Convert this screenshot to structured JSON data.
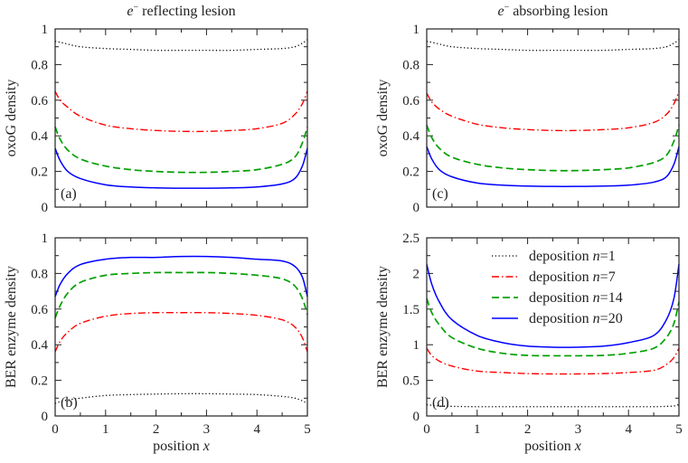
{
  "chart_data": [
    {
      "type": "line",
      "panel_label": "(a)",
      "title": {
        "e": "e",
        "sup": "−",
        "text": " reflecting lesion"
      },
      "xlabel": "",
      "ylabel": "oxoG density",
      "xlim": [
        0,
        5
      ],
      "ylim": [
        0,
        1
      ],
      "xticks": [
        0,
        1,
        2,
        3,
        4,
        5
      ],
      "yticks": [
        0,
        0.2,
        0.4,
        0.6,
        0.8,
        1
      ],
      "xtick_labels_shown": false,
      "x": [
        0,
        0.1,
        0.25,
        0.5,
        1,
        1.5,
        2,
        2.5,
        3,
        3.5,
        4,
        4.5,
        4.75,
        4.9,
        5
      ],
      "series": [
        {
          "key": "n1",
          "values": [
            0.93,
            0.925,
            0.915,
            0.9,
            0.89,
            0.885,
            0.88,
            0.88,
            0.88,
            0.88,
            0.885,
            0.89,
            0.9,
            0.92,
            0.94
          ]
        },
        {
          "key": "n7",
          "values": [
            0.65,
            0.6,
            0.56,
            0.51,
            0.46,
            0.44,
            0.43,
            0.425,
            0.425,
            0.43,
            0.44,
            0.47,
            0.52,
            0.58,
            0.65
          ]
        },
        {
          "key": "n14",
          "values": [
            0.45,
            0.38,
            0.32,
            0.27,
            0.23,
            0.21,
            0.2,
            0.195,
            0.195,
            0.2,
            0.21,
            0.24,
            0.28,
            0.36,
            0.45
          ]
        },
        {
          "key": "n20",
          "values": [
            0.33,
            0.26,
            0.2,
            0.16,
            0.125,
            0.113,
            0.108,
            0.106,
            0.106,
            0.108,
            0.113,
            0.13,
            0.16,
            0.23,
            0.33
          ]
        }
      ]
    },
    {
      "type": "line",
      "panel_label": "(c)",
      "title": {
        "e": "e",
        "sup": "−",
        "text": " absorbing lesion"
      },
      "xlabel": "",
      "ylabel": "oxoG density",
      "xlim": [
        0,
        5
      ],
      "ylim": [
        0,
        1
      ],
      "xticks": [
        0,
        1,
        2,
        3,
        4,
        5
      ],
      "yticks": [
        0,
        0.2,
        0.4,
        0.6,
        0.8,
        1
      ],
      "xtick_labels_shown": false,
      "x": [
        0,
        0.1,
        0.25,
        0.5,
        1,
        1.5,
        2,
        2.5,
        3,
        3.5,
        4,
        4.5,
        4.75,
        4.9,
        5
      ],
      "series": [
        {
          "key": "n1",
          "values": [
            0.93,
            0.925,
            0.915,
            0.9,
            0.89,
            0.885,
            0.88,
            0.88,
            0.88,
            0.88,
            0.885,
            0.89,
            0.9,
            0.92,
            0.94
          ]
        },
        {
          "key": "n7",
          "values": [
            0.64,
            0.59,
            0.55,
            0.51,
            0.465,
            0.445,
            0.435,
            0.43,
            0.43,
            0.435,
            0.445,
            0.475,
            0.52,
            0.58,
            0.65
          ]
        },
        {
          "key": "n14",
          "values": [
            0.46,
            0.39,
            0.33,
            0.28,
            0.24,
            0.22,
            0.21,
            0.205,
            0.205,
            0.21,
            0.22,
            0.25,
            0.29,
            0.37,
            0.46
          ]
        },
        {
          "key": "n20",
          "values": [
            0.34,
            0.27,
            0.21,
            0.17,
            0.135,
            0.123,
            0.118,
            0.116,
            0.116,
            0.118,
            0.123,
            0.14,
            0.17,
            0.24,
            0.34
          ]
        }
      ]
    },
    {
      "type": "line",
      "panel_label": "(b)",
      "xlabel": "position x",
      "ylabel": "BER enzyme density",
      "xlim": [
        0,
        5
      ],
      "ylim": [
        0,
        1
      ],
      "xticks": [
        0,
        1,
        2,
        3,
        4,
        5
      ],
      "yticks": [
        0,
        0.2,
        0.4,
        0.6,
        0.8,
        1
      ],
      "xtick_labels_shown": true,
      "x": [
        0,
        0.1,
        0.25,
        0.5,
        1,
        1.5,
        2,
        2.5,
        3,
        3.5,
        4,
        4.5,
        4.75,
        4.9,
        5
      ],
      "series": [
        {
          "key": "n1",
          "values": [
            0.07,
            0.08,
            0.09,
            0.1,
            0.115,
            0.12,
            0.123,
            0.125,
            0.125,
            0.123,
            0.12,
            0.11,
            0.1,
            0.085,
            0.07
          ]
        },
        {
          "key": "n7",
          "values": [
            0.36,
            0.42,
            0.47,
            0.52,
            0.56,
            0.575,
            0.58,
            0.58,
            0.58,
            0.575,
            0.565,
            0.54,
            0.5,
            0.44,
            0.36
          ]
        },
        {
          "key": "n14",
          "values": [
            0.55,
            0.62,
            0.69,
            0.75,
            0.79,
            0.8,
            0.805,
            0.805,
            0.805,
            0.8,
            0.79,
            0.77,
            0.73,
            0.66,
            0.57
          ]
        },
        {
          "key": "n20",
          "values": [
            0.67,
            0.74,
            0.8,
            0.85,
            0.88,
            0.89,
            0.89,
            0.895,
            0.895,
            0.89,
            0.88,
            0.87,
            0.84,
            0.78,
            0.67
          ]
        }
      ]
    },
    {
      "type": "line",
      "panel_label": "(d)",
      "xlabel": "position x",
      "ylabel": "BER enzyme density",
      "xlim": [
        0,
        5
      ],
      "ylim": [
        0,
        2.5
      ],
      "xticks": [
        0,
        1,
        2,
        3,
        4,
        5
      ],
      "yticks": [
        0,
        0.5,
        1,
        1.5,
        2,
        2.5
      ],
      "xtick_labels_shown": true,
      "legend_position": "top-right",
      "x": [
        0,
        0.1,
        0.25,
        0.5,
        1,
        1.5,
        2,
        2.5,
        3,
        3.5,
        4,
        4.5,
        4.75,
        4.9,
        5
      ],
      "series": [
        {
          "key": "n1",
          "name": "deposition n=1",
          "values": [
            0.16,
            0.15,
            0.14,
            0.135,
            0.13,
            0.13,
            0.13,
            0.13,
            0.13,
            0.13,
            0.13,
            0.13,
            0.135,
            0.14,
            0.16
          ]
        },
        {
          "key": "n7",
          "name": "deposition n=7",
          "values": [
            0.95,
            0.85,
            0.77,
            0.7,
            0.63,
            0.61,
            0.595,
            0.59,
            0.59,
            0.595,
            0.61,
            0.64,
            0.72,
            0.82,
            0.95
          ]
        },
        {
          "key": "n14",
          "name": "deposition n=14",
          "values": [
            1.65,
            1.45,
            1.28,
            1.1,
            0.95,
            0.88,
            0.85,
            0.845,
            0.845,
            0.85,
            0.88,
            0.95,
            1.1,
            1.3,
            1.6
          ]
        },
        {
          "key": "n20",
          "name": "deposition n=20",
          "values": [
            2.13,
            1.85,
            1.6,
            1.35,
            1.13,
            1.03,
            0.98,
            0.965,
            0.965,
            0.98,
            1.03,
            1.13,
            1.35,
            1.65,
            2.13
          ]
        }
      ]
    }
  ],
  "legend": [
    {
      "key": "n1",
      "prefix": "deposition ",
      "n": "n",
      "suffix": "=1"
    },
    {
      "key": "n7",
      "prefix": "deposition ",
      "n": "n",
      "suffix": "=7"
    },
    {
      "key": "n14",
      "prefix": "deposition ",
      "n": "n",
      "suffix": "=14"
    },
    {
      "key": "n20",
      "prefix": "deposition ",
      "n": "n",
      "suffix": "=20"
    }
  ],
  "styles": {
    "n1": {
      "color": "#000000",
      "dash": "dotted"
    },
    "n7": {
      "color": "#ff0000",
      "dash": "dash-dot"
    },
    "n14": {
      "color": "#00a000",
      "dash": "dashed"
    },
    "n20": {
      "color": "#0000ff",
      "dash": "solid"
    }
  }
}
